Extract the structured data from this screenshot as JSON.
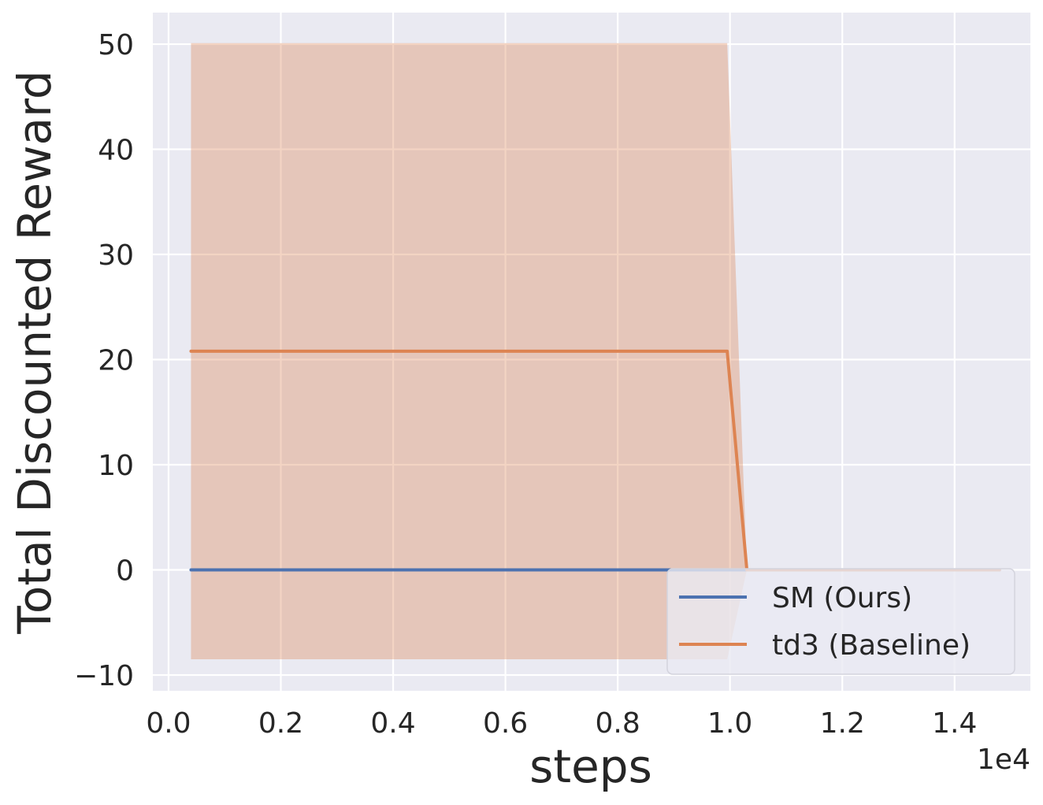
{
  "chart_data": {
    "type": "line",
    "title": "",
    "xlabel": "steps",
    "ylabel": "Total Discounted Reward",
    "x_offset_label": "1e4",
    "xlim": [
      -0.028,
      1.535
    ],
    "ylim": [
      -11.5,
      53
    ],
    "x_ticks": [
      0.0,
      0.2,
      0.4,
      0.6,
      0.8,
      1.0,
      1.2,
      1.4
    ],
    "x_tick_labels": [
      "0.0",
      "0.2",
      "0.4",
      "0.6",
      "0.8",
      "1.0",
      "1.2",
      "1.4"
    ],
    "y_ticks": [
      -10,
      0,
      10,
      20,
      30,
      40,
      50
    ],
    "y_tick_labels": [
      "−10",
      "0",
      "10",
      "20",
      "30",
      "40",
      "50"
    ],
    "grid": true,
    "legend_position": "lower-right",
    "series": [
      {
        "name": "SM (Ours)",
        "color": "#4c72b0",
        "x": [
          0.04,
          1.48
        ],
        "y": [
          0,
          0
        ]
      },
      {
        "name": "td3 (Baseline)",
        "color": "#dd8452",
        "x": [
          0.04,
          0.995,
          1.03,
          1.48
        ],
        "y": [
          20.8,
          20.8,
          0,
          0
        ],
        "band_upper": [
          50.1,
          50.1,
          0,
          0
        ],
        "band_lower": [
          -8.5,
          -8.5,
          0,
          0
        ]
      }
    ]
  }
}
